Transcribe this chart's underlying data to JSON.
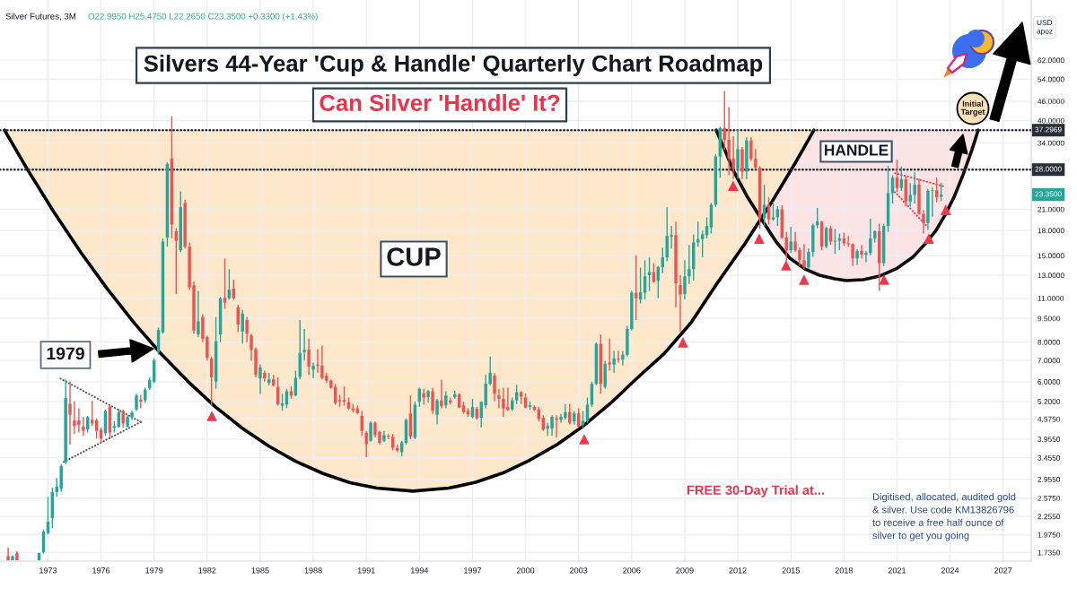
{
  "chart_data": {
    "type": "candlestick",
    "title": "Silvers 44-Year 'Cup & Handle' Quarterly Chart Roadmap",
    "subtitle": "Can Silver 'Handle' It?",
    "ylabel": "USD\napoz",
    "log": true,
    "grid": true,
    "xlim": [
      "1970-04-16",
      "2028-08-03"
    ],
    "ylim": [
      1.63,
      96
    ],
    "xticks": [
      "1973",
      "1976",
      "1979",
      "1982",
      "1985",
      "1988",
      "1991",
      "1994",
      "1997",
      "2000",
      "2003",
      "2006",
      "2009",
      "2012",
      "2015",
      "2018",
      "2021",
      "2024",
      "2027"
    ],
    "yticks": [
      {
        "value": 62,
        "label": "62.0000"
      },
      {
        "value": 54,
        "label": "54.0000"
      },
      {
        "value": 46,
        "label": "46.0000"
      },
      {
        "value": 40,
        "label": "40.0000"
      },
      {
        "value": 34,
        "label": "34.0000"
      },
      {
        "value": 21,
        "label": "21.0000"
      },
      {
        "value": 18,
        "label": "18.0000"
      },
      {
        "value": 15,
        "label": "15.0000"
      },
      {
        "value": 13,
        "label": "13.0000"
      },
      {
        "value": 11,
        "label": "11.0000"
      },
      {
        "value": 9.5,
        "label": "9.5000"
      },
      {
        "value": 8,
        "label": "8.0000"
      },
      {
        "value": 7,
        "label": "7.0000"
      },
      {
        "value": 6,
        "label": "6.0000"
      },
      {
        "value": 5.2,
        "label": "5.2000"
      },
      {
        "value": 4.575,
        "label": "4.5750"
      },
      {
        "value": 3.955,
        "label": "3.9550"
      },
      {
        "value": 3.455,
        "label": "3.4550"
      },
      {
        "value": 2.955,
        "label": "2.9550"
      },
      {
        "value": 2.575,
        "label": "2.5750"
      },
      {
        "value": 2.255,
        "label": "2.2550"
      },
      {
        "value": 1.975,
        "label": "1.9750"
      },
      {
        "value": 1.735,
        "label": "1.7350"
      }
    ],
    "x": [
      "1970-10",
      "1971-01",
      "1971-04",
      "1972-07",
      "1972-10",
      "1973-01",
      "1973-04",
      "1973-07",
      "1973-10",
      "1974-01",
      "1974-04",
      "1974-07",
      "1974-10",
      "1975-01",
      "1975-04",
      "1975-07",
      "1975-10",
      "1976-01",
      "1976-04",
      "1976-07",
      "1976-10",
      "1977-01",
      "1977-04",
      "1977-07",
      "1977-10",
      "1978-01",
      "1978-04",
      "1978-07",
      "1978-10",
      "1979-01",
      "1979-04",
      "1979-07",
      "1979-10",
      "1980-01",
      "1980-04",
      "1980-07",
      "1980-10",
      "1981-01",
      "1981-04",
      "1981-07",
      "1981-10",
      "1982-01",
      "1982-04",
      "1982-07",
      "1982-10",
      "1983-01",
      "1983-04",
      "1983-07",
      "1983-10",
      "1984-01",
      "1984-04",
      "1984-07",
      "1984-10",
      "1985-01",
      "1985-04",
      "1985-07",
      "1985-10",
      "1986-01",
      "1986-04",
      "1986-07",
      "1986-10",
      "1987-01",
      "1987-04",
      "1987-07",
      "1987-10",
      "1988-01",
      "1988-04",
      "1988-07",
      "1988-10",
      "1989-01",
      "1989-04",
      "1989-07",
      "1989-10",
      "1990-01",
      "1990-04",
      "1990-07",
      "1990-10",
      "1991-01",
      "1991-04",
      "1991-07",
      "1991-10",
      "1992-01",
      "1992-04",
      "1992-07",
      "1992-10",
      "1993-01",
      "1993-04",
      "1993-07",
      "1993-10",
      "1994-01",
      "1994-04",
      "1994-07",
      "1994-10",
      "1995-01",
      "1995-04",
      "1995-07",
      "1995-10",
      "1996-01",
      "1996-04",
      "1996-07",
      "1996-10",
      "1997-01",
      "1997-04",
      "1997-07",
      "1997-10",
      "1998-01",
      "1998-04",
      "1998-07",
      "1998-10",
      "1999-01",
      "1999-04",
      "1999-07",
      "1999-10",
      "2000-01",
      "2000-04",
      "2000-07",
      "2000-10",
      "2001-01",
      "2001-04",
      "2001-07",
      "2001-10",
      "2002-01",
      "2002-04",
      "2002-07",
      "2002-10",
      "2003-01",
      "2003-04",
      "2003-07",
      "2003-10",
      "2004-01",
      "2004-04",
      "2004-07",
      "2004-10",
      "2005-01",
      "2005-04",
      "2005-07",
      "2005-10",
      "2006-01",
      "2006-04",
      "2006-07",
      "2006-10",
      "2007-01",
      "2007-04",
      "2007-07",
      "2007-10",
      "2008-01",
      "2008-04",
      "2008-07",
      "2008-10",
      "2009-01",
      "2009-04",
      "2009-07",
      "2009-10",
      "2010-01",
      "2010-04",
      "2010-07",
      "2010-10",
      "2011-01",
      "2011-04",
      "2011-07",
      "2011-10",
      "2012-01",
      "2012-04",
      "2012-07",
      "2012-10",
      "2013-01",
      "2013-04",
      "2013-07",
      "2013-10",
      "2014-01",
      "2014-04",
      "2014-07",
      "2014-10",
      "2015-01",
      "2015-04",
      "2015-07",
      "2015-10",
      "2016-01",
      "2016-04",
      "2016-07",
      "2016-10",
      "2017-01",
      "2017-04",
      "2017-07",
      "2017-10",
      "2018-01",
      "2018-04",
      "2018-07",
      "2018-10",
      "2019-01",
      "2019-04",
      "2019-07",
      "2019-10",
      "2020-01",
      "2020-04",
      "2020-07",
      "2020-10",
      "2021-01",
      "2021-04",
      "2021-07",
      "2021-10",
      "2022-01",
      "2022-04",
      "2022-07",
      "2022-10",
      "2023-01",
      "2023-04",
      "2023-07"
    ],
    "ohlc": [
      [
        1.69,
        1.8,
        1.64,
        1.64
      ],
      [
        1.64,
        1.7,
        1.64,
        1.69
      ],
      [
        1.73,
        1.75,
        1.64,
        1.64
      ],
      [
        1.64,
        1.73,
        1.64,
        1.73
      ],
      [
        1.74,
        2.05,
        1.72,
        2.02
      ],
      [
        2.0,
        2.6,
        1.98,
        2.17
      ],
      [
        2.23,
        2.78,
        2.07,
        2.69
      ],
      [
        2.69,
        2.98,
        2.6,
        2.8
      ],
      [
        2.76,
        3.3,
        2.7,
        3.25
      ],
      [
        3.35,
        6.1,
        3.3,
        5.33
      ],
      [
        5.11,
        6.0,
        3.8,
        4.72
      ],
      [
        4.53,
        5.2,
        4.1,
        4.35
      ],
      [
        4.53,
        4.95,
        4.15,
        4.38
      ],
      [
        4.33,
        4.64,
        4.05,
        4.2
      ],
      [
        4.24,
        4.68,
        4.15,
        4.64
      ],
      [
        4.55,
        5.22,
        4.35,
        4.43
      ],
      [
        4.53,
        4.6,
        3.97,
        4.2
      ],
      [
        4.24,
        4.3,
        3.84,
        3.97
      ],
      [
        4.13,
        4.9,
        4.05,
        4.85
      ],
      [
        5.0,
        5.05,
        4.0,
        4.15
      ],
      [
        4.29,
        4.5,
        4.15,
        4.35
      ],
      [
        4.33,
        4.92,
        4.3,
        4.8
      ],
      [
        4.85,
        4.9,
        4.3,
        4.43
      ],
      [
        4.33,
        4.7,
        4.3,
        4.64
      ],
      [
        4.64,
        4.85,
        4.55,
        4.8
      ],
      [
        4.91,
        5.5,
        4.85,
        5.43
      ],
      [
        5.27,
        5.45,
        4.95,
        5.19
      ],
      [
        5.24,
        5.75,
        5.15,
        5.67
      ],
      [
        5.73,
        6.2,
        5.65,
        6.08
      ],
      [
        6.0,
        7.1,
        5.95,
        7.0
      ],
      [
        7.42,
        8.9,
        7.3,
        8.74
      ],
      [
        8.6,
        17.0,
        8.5,
        16.6
      ],
      [
        17.1,
        29.5,
        16.0,
        29.2
      ],
      [
        30.3,
        41.2,
        17.0,
        18.8
      ],
      [
        17.9,
        18.3,
        11.35,
        16.7
      ],
      [
        15.6,
        23.9,
        15.4,
        21.3
      ],
      [
        22.0,
        22.5,
        15.8,
        16.0
      ],
      [
        16.0,
        16.5,
        11.7,
        11.9
      ],
      [
        12.1,
        12.4,
        8.5,
        8.7
      ],
      [
        8.46,
        11.6,
        8.3,
        9.3
      ],
      [
        9.6,
        9.8,
        8.0,
        8.2
      ],
      [
        8.3,
        8.4,
        7.0,
        7.14
      ],
      [
        7.1,
        7.2,
        5.03,
        6.2
      ],
      [
        6.0,
        9.6,
        5.7,
        8.05
      ],
      [
        8.46,
        11.1,
        8.0,
        11.0
      ],
      [
        11.05,
        14.7,
        10.2,
        10.65
      ],
      [
        11.0,
        13.6,
        10.9,
        11.7
      ],
      [
        11.8,
        12.6,
        10.9,
        11.0
      ],
      [
        10.3,
        10.5,
        8.6,
        9.1
      ],
      [
        8.64,
        10.1,
        7.9,
        9.84
      ],
      [
        9.4,
        9.6,
        8.0,
        8.5
      ],
      [
        8.4,
        8.5,
        6.98,
        7.56
      ],
      [
        7.6,
        7.7,
        6.2,
        6.3
      ],
      [
        6.15,
        6.8,
        5.48,
        6.66
      ],
      [
        6.4,
        6.5,
        6.0,
        6.15
      ],
      [
        5.95,
        6.4,
        5.85,
        6.1
      ],
      [
        6.1,
        6.3,
        5.8,
        5.84
      ],
      [
        5.78,
        6.2,
        5.05,
        5.1
      ],
      [
        5.04,
        5.5,
        4.86,
        5.13
      ],
      [
        5.08,
        5.7,
        4.95,
        5.6
      ],
      [
        5.6,
        5.8,
        5.3,
        5.43
      ],
      [
        5.43,
        6.5,
        5.4,
        6.17
      ],
      [
        6.22,
        9.4,
        6.1,
        7.4
      ],
      [
        7.45,
        8.8,
        7.0,
        7.56
      ],
      [
        7.58,
        8.2,
        6.3,
        6.7
      ],
      [
        6.55,
        6.9,
        6.15,
        6.74
      ],
      [
        6.8,
        7.6,
        6.4,
        6.74
      ],
      [
        6.74,
        7.8,
        6.1,
        6.17
      ],
      [
        6.27,
        6.4,
        5.95,
        6.05
      ],
      [
        6.05,
        6.1,
        5.7,
        5.75
      ],
      [
        5.78,
        5.9,
        5.08,
        5.14
      ],
      [
        5.25,
        5.45,
        5.0,
        5.2
      ],
      [
        5.25,
        5.8,
        5.05,
        5.19
      ],
      [
        5.18,
        5.35,
        4.9,
        4.93
      ],
      [
        4.94,
        5.1,
        4.8,
        4.88
      ],
      [
        4.94,
        5.05,
        4.75,
        4.78
      ],
      [
        4.68,
        4.85,
        4.05,
        4.2
      ],
      [
        4.14,
        4.2,
        3.47,
        3.81
      ],
      [
        3.91,
        4.5,
        3.88,
        4.45
      ],
      [
        4.45,
        4.5,
        4.0,
        4.07
      ],
      [
        4.17,
        4.2,
        3.8,
        3.85
      ],
      [
        3.91,
        4.2,
        3.87,
        4.07
      ],
      [
        4.05,
        4.1,
        3.95,
        4.02
      ],
      [
        4.02,
        4.1,
        3.65,
        3.71
      ],
      [
        3.71,
        3.8,
        3.6,
        3.64
      ],
      [
        3.6,
        3.9,
        3.49,
        3.86
      ],
      [
        3.85,
        4.6,
        3.8,
        4.55
      ],
      [
        4.77,
        5.43,
        3.95,
        4.02
      ],
      [
        4.0,
        5.2,
        3.95,
        5.08
      ],
      [
        5.19,
        5.75,
        5.0,
        5.7
      ],
      [
        5.52,
        5.7,
        5.08,
        5.35
      ],
      [
        5.37,
        5.65,
        5.15,
        5.6
      ],
      [
        5.6,
        5.75,
        4.75,
        4.86
      ],
      [
        4.72,
        5.3,
        4.4,
        5.24
      ],
      [
        5.24,
        6.08,
        4.95,
        5.02
      ],
      [
        5.05,
        5.6,
        4.95,
        5.43
      ],
      [
        5.24,
        5.35,
        5.08,
        5.16
      ],
      [
        5.36,
        5.62,
        5.3,
        5.48
      ],
      [
        5.48,
        5.52,
        4.95,
        4.97
      ],
      [
        5.05,
        5.2,
        4.75,
        4.81
      ],
      [
        4.86,
        4.95,
        4.65,
        4.73
      ],
      [
        4.64,
        5.3,
        4.6,
        4.99
      ],
      [
        4.93,
        5.0,
        4.55,
        4.6
      ],
      [
        4.62,
        5.2,
        4.3,
        5.18
      ],
      [
        5.06,
        6.3,
        4.95,
        5.91
      ],
      [
        5.91,
        7.2,
        5.85,
        6.4
      ],
      [
        6.27,
        6.4,
        5.2,
        5.5
      ],
      [
        5.43,
        5.7,
        4.95,
        5.3
      ],
      [
        5.3,
        5.75,
        4.65,
        4.94
      ],
      [
        4.99,
        5.75,
        4.85,
        4.89
      ],
      [
        4.91,
        5.35,
        4.85,
        5.24
      ],
      [
        5.24,
        5.87,
        5.1,
        5.56
      ],
      [
        5.56,
        5.6,
        5.1,
        5.39
      ],
      [
        5.35,
        5.5,
        4.95,
        4.97
      ],
      [
        5.0,
        5.2,
        4.9,
        5.05
      ],
      [
        5.0,
        5.05,
        4.85,
        4.89
      ],
      [
        4.91,
        5.0,
        4.5,
        4.58
      ],
      [
        4.62,
        4.7,
        4.2,
        4.24
      ],
      [
        4.27,
        4.45,
        4.05,
        4.35
      ],
      [
        4.27,
        4.7,
        4.05,
        4.65
      ],
      [
        4.6,
        4.7,
        4.0,
        4.55
      ],
      [
        4.55,
        4.75,
        4.45,
        4.65
      ],
      [
        4.62,
        5.1,
        4.55,
        4.81
      ],
      [
        4.81,
        5.1,
        4.4,
        4.45
      ],
      [
        4.5,
        4.85,
        4.4,
        4.77
      ],
      [
        4.77,
        4.95,
        4.3,
        4.33
      ],
      [
        4.38,
        4.85,
        4.26,
        4.52
      ],
      [
        4.5,
        5.35,
        4.45,
        5.08
      ],
      [
        5.08,
        6.0,
        5.0,
        5.91
      ],
      [
        5.91,
        8.0,
        5.85,
        7.9
      ],
      [
        7.9,
        8.45,
        5.5,
        5.91
      ],
      [
        5.78,
        7.0,
        5.7,
        6.84
      ],
      [
        6.9,
        8.2,
        6.5,
        6.8
      ],
      [
        6.8,
        7.5,
        6.4,
        7.1
      ],
      [
        7.1,
        7.5,
        6.9,
        7.05
      ],
      [
        7.05,
        7.5,
        6.75,
        7.3
      ],
      [
        7.3,
        9.0,
        7.2,
        8.8
      ],
      [
        8.8,
        11.6,
        8.7,
        11.45
      ],
      [
        11.45,
        15.0,
        9.4,
        11.0
      ],
      [
        10.9,
        13.75,
        10.6,
        11.5
      ],
      [
        11.45,
        14.5,
        10.9,
        12.9
      ],
      [
        13.0,
        14.8,
        11.6,
        13.3
      ],
      [
        13.3,
        14.2,
        12.3,
        12.4
      ],
      [
        12.5,
        13.9,
        11.0,
        13.8
      ],
      [
        13.8,
        15.9,
        13.2,
        14.8
      ],
      [
        14.8,
        21.3,
        14.4,
        17.3
      ],
      [
        17.2,
        18.6,
        15.8,
        17.4
      ],
      [
        17.4,
        19.2,
        10.3,
        12.25
      ],
      [
        12.1,
        13.0,
        8.64,
        11.3
      ],
      [
        11.35,
        14.5,
        10.9,
        12.9
      ],
      [
        12.9,
        16.2,
        12.2,
        13.6
      ],
      [
        13.6,
        17.5,
        12.5,
        16.5
      ],
      [
        16.5,
        19.2,
        16.0,
        16.9
      ],
      [
        16.9,
        18.0,
        14.8,
        17.5
      ],
      [
        17.4,
        19.8,
        17.0,
        18.6
      ],
      [
        18.4,
        22.0,
        17.6,
        21.7
      ],
      [
        21.7,
        31.3,
        21.4,
        30.8
      ],
      [
        30.8,
        38.2,
        26.4,
        37.9
      ],
      [
        37.9,
        49.6,
        32.3,
        34.8
      ],
      [
        34.8,
        44.1,
        26.9,
        30.4
      ],
      [
        30.4,
        35.7,
        26.2,
        28.2
      ],
      [
        28.2,
        37.5,
        26.2,
        32.5
      ],
      [
        32.5,
        33.0,
        26.1,
        27.6
      ],
      [
        27.6,
        35.4,
        26.1,
        34.6
      ],
      [
        34.6,
        35.4,
        29.9,
        30.3
      ],
      [
        30.3,
        32.5,
        28.1,
        28.4
      ],
      [
        28.4,
        28.7,
        18.2,
        19.7
      ],
      [
        19.7,
        25.1,
        18.6,
        21.7
      ],
      [
        21.7,
        22.9,
        18.8,
        19.5
      ],
      [
        19.5,
        22.2,
        19.3,
        19.8
      ],
      [
        19.8,
        21.5,
        18.6,
        21.0
      ],
      [
        21.0,
        21.6,
        16.9,
        17.1
      ],
      [
        17.1,
        17.8,
        14.2,
        15.6
      ],
      [
        15.6,
        18.5,
        15.3,
        16.6
      ],
      [
        16.6,
        17.8,
        15.4,
        15.6
      ],
      [
        15.6,
        15.9,
        13.9,
        14.5
      ],
      [
        14.5,
        16.3,
        13.6,
        13.8
      ],
      [
        13.8,
        15.8,
        13.6,
        15.4
      ],
      [
        15.4,
        18.9,
        14.9,
        18.7
      ],
      [
        18.7,
        21.2,
        18.3,
        19.2
      ],
      [
        19.2,
        19.3,
        15.6,
        16.0
      ],
      [
        16.0,
        18.5,
        15.8,
        18.3
      ],
      [
        18.3,
        18.6,
        16.2,
        16.6
      ],
      [
        16.6,
        18.2,
        15.2,
        16.7
      ],
      [
        16.7,
        17.6,
        15.6,
        17.0
      ],
      [
        17.0,
        17.7,
        16.1,
        16.4
      ],
      [
        16.4,
        17.3,
        16.0,
        16.3
      ],
      [
        16.3,
        16.4,
        13.9,
        14.7
      ],
      [
        14.7,
        15.7,
        14.0,
        15.5
      ],
      [
        15.5,
        16.2,
        14.7,
        15.1
      ],
      [
        15.1,
        15.5,
        14.3,
        15.3
      ],
      [
        15.3,
        19.6,
        15.0,
        17.0
      ],
      [
        17.0,
        18.0,
        16.5,
        17.9
      ],
      [
        17.9,
        18.9,
        11.6,
        14.2
      ],
      [
        14.2,
        18.9,
        13.9,
        18.6
      ],
      [
        18.6,
        28.8,
        17.8,
        23.6
      ],
      [
        23.6,
        26.9,
        21.9,
        26.4
      ],
      [
        26.4,
        30.1,
        23.8,
        24.5
      ],
      [
        24.5,
        28.7,
        24.0,
        26.1
      ],
      [
        26.1,
        26.6,
        21.4,
        22.2
      ],
      [
        22.2,
        25.4,
        21.4,
        23.3
      ],
      [
        23.3,
        27.5,
        21.9,
        25.1
      ],
      [
        25.1,
        26.2,
        20.2,
        20.3
      ],
      [
        20.3,
        20.9,
        17.6,
        19.0
      ],
      [
        19.0,
        24.3,
        18.1,
        24.0
      ],
      [
        24.0,
        24.6,
        19.9,
        24.1
      ],
      [
        24.1,
        26.4,
        22.1,
        22.9
      ],
      [
        22.995,
        25.475,
        22.265,
        23.35
      ]
    ],
    "colors": [
      "#ef5350",
      "#26a69a",
      "#ef5350",
      "#26a69a",
      "#26a69a",
      "#26a69a",
      "#26a69a",
      "#26a69a",
      "#26a69a",
      "#26a69a",
      "#ef5350",
      "#ef5350",
      "#ef5350",
      "#ef5350",
      "#26a69a",
      "#ef5350",
      "#ef5350",
      "#ef5350",
      "#26a69a",
      "#ef5350",
      "#26a69a",
      "#26a69a",
      "#ef5350",
      "#26a69a",
      "#26a69a",
      "#26a69a",
      "#ef5350",
      "#26a69a",
      "#26a69a",
      "#26a69a",
      "#26a69a",
      "#26a69a",
      "#26a69a",
      "#ef5350",
      "#ef5350",
      "#26a69a",
      "#ef5350",
      "#ef5350",
      "#ef5350",
      "#26a69a",
      "#ef5350",
      "#ef5350",
      "#ef5350",
      "#26a69a",
      "#26a69a",
      "#ef5350",
      "#26a69a",
      "#ef5350",
      "#ef5350",
      "#26a69a",
      "#ef5350",
      "#ef5350",
      "#ef5350",
      "#26a69a",
      "#ef5350",
      "#26a69a",
      "#ef5350",
      "#ef5350",
      "#26a69a",
      "#26a69a",
      "#ef5350",
      "#26a69a",
      "#26a69a",
      "#26a69a",
      "#ef5350",
      "#26a69a",
      "#ef5350",
      "#ef5350",
      "#ef5350",
      "#ef5350",
      "#ef5350",
      "#ef5350",
      "#ef5350",
      "#ef5350",
      "#ef5350",
      "#ef5350",
      "#ef5350",
      "#ef5350",
      "#26a69a",
      "#ef5350",
      "#ef5350",
      "#26a69a",
      "#ef5350",
      "#ef5350",
      "#ef5350",
      "#26a69a",
      "#26a69a",
      "#ef5350",
      "#26a69a",
      "#26a69a",
      "#ef5350",
      "#26a69a",
      "#ef5350",
      "#26a69a",
      "#ef5350",
      "#26a69a",
      "#ef5350",
      "#26a69a",
      "#ef5350",
      "#ef5350",
      "#ef5350",
      "#26a69a",
      "#ef5350",
      "#26a69a",
      "#26a69a",
      "#26a69a",
      "#ef5350",
      "#ef5350",
      "#ef5350",
      "#ef5350",
      "#26a69a",
      "#26a69a",
      "#ef5350",
      "#ef5350",
      "#26a69a",
      "#ef5350",
      "#ef5350",
      "#ef5350",
      "#26a69a",
      "#26a69a",
      "#ef5350",
      "#26a69a",
      "#26a69a",
      "#ef5350",
      "#26a69a",
      "#ef5350",
      "#26a69a",
      "#26a69a",
      "#26a69a",
      "#26a69a",
      "#ef5350",
      "#26a69a",
      "#ef5350",
      "#26a69a",
      "#ef5350",
      "#26a69a",
      "#26a69a",
      "#26a69a",
      "#ef5350",
      "#26a69a",
      "#26a69a",
      "#26a69a",
      "#ef5350",
      "#26a69a",
      "#26a69a",
      "#26a69a",
      "#26a69a",
      "#ef5350",
      "#ef5350",
      "#26a69a",
      "#26a69a",
      "#26a69a",
      "#26a69a",
      "#26a69a",
      "#26a69a",
      "#26a69a",
      "#26a69a",
      "#26a69a",
      "#ef5350",
      "#ef5350",
      "#ef5350",
      "#26a69a",
      "#ef5350",
      "#26a69a",
      "#ef5350",
      "#ef5350",
      "#ef5350",
      "#26a69a",
      "#ef5350",
      "#26a69a",
      "#26a69a",
      "#ef5350",
      "#ef5350",
      "#26a69a",
      "#ef5350",
      "#ef5350",
      "#ef5350",
      "#26a69a",
      "#26a69a",
      "#26a69a",
      "#ef5350",
      "#26a69a",
      "#ef5350",
      "#26a69a",
      "#26a69a",
      "#ef5350",
      "#ef5350",
      "#ef5350",
      "#26a69a",
      "#ef5350",
      "#26a69a",
      "#26a69a",
      "#26a69a",
      "#ef5350",
      "#26a69a",
      "#26a69a",
      "#26a69a",
      "#ef5350",
      "#26a69a",
      "#ef5350",
      "#26a69a",
      "#26a69a",
      "#ef5350",
      "#ef5350",
      "#26a69a",
      "#26a69a",
      "#ef5350",
      "#26a69a"
    ],
    "series": [
      {
        "type": "line",
        "color": "#000000",
        "x": [
          "1970-07-18",
          "1971-10-24",
          "1973-05-02",
          "1974-11-09",
          "1976-05-18",
          "1977-11-25",
          "1979-06-03",
          "1980-12-11",
          "1982-06-19",
          "1983-12-27",
          "1985-07-06",
          "1987-01-12",
          "1988-07-21",
          "1990-01-28",
          "1991-08-07",
          "1993-08-17",
          "1995-08-28",
          "1997-03-07",
          "1998-09-13",
          "2000-03-22",
          "2001-09-29",
          "2003-04-08",
          "2004-10-15",
          "2006-04-24",
          "2007-10-31",
          "2009-05-10",
          "2010-11-16",
          "2012-05-25",
          "2013-12-03",
          "2015-03-11",
          "2016-04-22"
        ],
        "values": [
          37.2969,
          28.21,
          20.58,
          15.36,
          11.73,
          9.16,
          7.32,
          5.99,
          5.0,
          4.28,
          3.75,
          3.36,
          3.08,
          2.88,
          2.77,
          2.71,
          2.77,
          2.89,
          3.09,
          3.39,
          3.79,
          4.35,
          5.12,
          6.16,
          7.35,
          9.21,
          12.36,
          16.34,
          22.14,
          29.01,
          37.2969
        ]
      },
      {
        "type": "line",
        "color": "#0d0d0d",
        "x": [
          "2010-10-12",
          "2011-04-15",
          "2011-09-29",
          "2012-07-21",
          "2013-06-02",
          "2014-03-06",
          "2014-12-09",
          "2015-10-20",
          "2016-08-11",
          "2017-06-23",
          "2018-02-18",
          "2019-02-06",
          "2020-01-05",
          "2021-01-10",
          "2021-11-20",
          "2022-07-19",
          "2023-03-17",
          "2023-09-18",
          "2024-03-22",
          "2024-09-24",
          "2025-03-28",
          "2025-08-04"
        ],
        "values": [
          37.2969,
          32.13,
          27.85,
          22.91,
          19.22,
          16.55,
          14.72,
          13.61,
          13.01,
          12.67,
          12.51,
          12.59,
          12.92,
          13.7,
          14.81,
          16.23,
          18.01,
          20.11,
          22.91,
          26.96,
          32.34,
          37.2969
        ]
      },
      {
        "type": "line",
        "color": "#555555",
        "line_style": "dotted",
        "x": [
          "1973-09-13",
          "1978-04-02"
        ],
        "values": [
          6.14,
          4.48
        ]
      },
      {
        "type": "line",
        "color": "#555555",
        "line_style": "dotted",
        "x": [
          "1973-11-20",
          "1978-04-02"
        ],
        "values": [
          3.35,
          4.48
        ]
      },
      {
        "type": "line",
        "color": "#f23645",
        "line_style": "dotted",
        "x": [
          "2020-11-20",
          "2023-08-10"
        ],
        "values": [
          27.3,
          24.84
        ]
      },
      {
        "type": "line",
        "color": "#f23645",
        "line_style": "dotted",
        "x": [
          "2020-11-20",
          "2022-08-19"
        ],
        "values": [
          23.8,
          18.7
        ]
      },
      {
        "type": "scatter",
        "color": "#f23645",
        "marker": "triangle",
        "x": [
          "1982-04-08",
          "2003-04-27",
          "2008-11-24",
          "2011-09-27",
          "2013-03-18",
          "2014-09-24",
          "2015-10-01",
          "2020-04-08",
          "2022-10-20",
          "2023-10-05"
        ],
        "values": [
          4.68,
          3.95,
          7.99,
          24.9,
          16.98,
          13.97,
          12.59,
          12.59,
          16.98,
          20.9
        ]
      }
    ],
    "ref_lines": [
      {
        "axis": "y",
        "value": 37.2969,
        "label": "37.2969",
        "color": "#2a2e39",
        "line_style": "dotted"
      },
      {
        "axis": "y",
        "value": 28,
        "label": "28.0000",
        "color": "#2a2e39",
        "line_style": "dotted"
      }
    ],
    "annotations": [
      "Silver Futures, 3M",
      "O22.9950 H25.4750 L22.2650 C23.3500 +0.3300 (+1.43%)",
      "CUP",
      "HANDLE",
      "1979",
      "Initial\nTarget",
      "23.3500",
      "FREE 30-Day Trial at...",
      "Digitised, allocated, audited gold\n& silver. Use code KM13826796\nto receive a free half ounce of\nsilver to get you going"
    ]
  }
}
